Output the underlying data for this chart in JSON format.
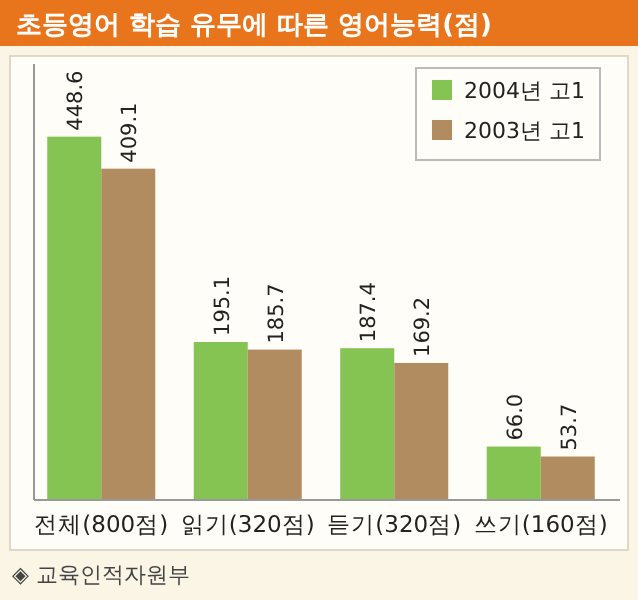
{
  "chart_data": {
    "type": "bar",
    "title": "초등영어 학습 유무에 따른 영어능력(점)",
    "categories": [
      "전체(800점)",
      "읽기(320점)",
      "듣기(320점)",
      "쓰기(160점)"
    ],
    "series": [
      {
        "name": "2004년 고1",
        "color": "#85c453",
        "values": [
          448.6,
          195.1,
          187.4,
          66.0
        ],
        "value_labels": [
          "448.6",
          "195.1",
          "187.4",
          "66.0"
        ]
      },
      {
        "name": "2003년 고1",
        "color": "#b08c60",
        "values": [
          409.1,
          185.7,
          169.2,
          53.7
        ],
        "value_labels": [
          "409.1",
          "185.7",
          "169.2",
          "53.7"
        ]
      }
    ],
    "legend": "top right",
    "annotations": [
      "◈ 교육인적자원부"
    ]
  }
}
